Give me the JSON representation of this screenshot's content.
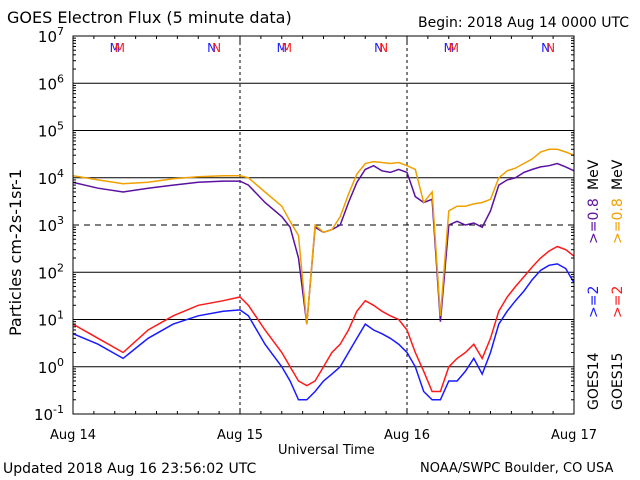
{
  "header": {
    "title": "GOES Electron Flux (5 minute data)",
    "begin": "Begin: 2018 Aug 14 0000 UTC"
  },
  "footer": {
    "updated": "Updated 2018 Aug 16 23:56:02 UTC",
    "credit": "NOAA/SWPC Boulder, CO USA"
  },
  "markers": {
    "midnight": "M",
    "noon": "N",
    "colors": {
      "goes14": "#1a1aff",
      "goes15": "#ff1a1a"
    }
  },
  "legend": {
    "goes14": "GOES14",
    "goes15": "GOES15",
    "gt2_goes14": ">=2",
    "gt2_goes15": ">=2",
    "gt08_goes14": ">=0.8",
    "gt08_goes15": ">=0.8",
    "unit": "MeV"
  },
  "chart_data": {
    "type": "line",
    "title": "GOES Electron Flux (5 minute data)",
    "xlabel": "Universal Time",
    "ylabel": "Particles cm-2s-1sr-1",
    "x_ticks": [
      "Aug 14",
      "Aug 15",
      "Aug 16",
      "Aug 17"
    ],
    "xlim_days": [
      0,
      3
    ],
    "y_scale": "log",
    "ylim": [
      0.1,
      10000000
    ],
    "y_ticks": [
      {
        "base": "10",
        "exp": "-1"
      },
      {
        "base": "10",
        "exp": "0"
      },
      {
        "base": "10",
        "exp": "1"
      },
      {
        "base": "10",
        "exp": "2"
      },
      {
        "base": "10",
        "exp": "3"
      },
      {
        "base": "10",
        "exp": "4"
      },
      {
        "base": "10",
        "exp": "5"
      },
      {
        "base": "10",
        "exp": "6"
      },
      {
        "base": "10",
        "exp": "7"
      }
    ],
    "grid": true,
    "threshold": 1000,
    "series": [
      {
        "name": "GOES14 >=0.8 MeV",
        "color": "#5a10a0",
        "x": [
          0.0,
          0.15,
          0.3,
          0.45,
          0.6,
          0.75,
          0.9,
          1.0,
          1.05,
          1.15,
          1.25,
          1.3,
          1.35,
          1.4,
          1.45,
          1.5,
          1.55,
          1.6,
          1.65,
          1.7,
          1.75,
          1.8,
          1.85,
          1.9,
          1.95,
          2.0,
          2.05,
          2.1,
          2.15,
          2.2,
          2.25,
          2.3,
          2.35,
          2.4,
          2.45,
          2.5,
          2.55,
          2.6,
          2.65,
          2.7,
          2.75,
          2.8,
          2.85,
          2.9,
          2.95,
          3.0
        ],
        "y": [
          8000,
          6000,
          5000,
          6000,
          7000,
          8000,
          8500,
          8500,
          7000,
          3000,
          1500,
          900,
          200,
          8,
          900,
          700,
          800,
          1000,
          3000,
          8000,
          15000,
          18000,
          14000,
          13000,
          15000,
          13000,
          4000,
          3000,
          3500,
          9,
          1000,
          1200,
          1000,
          1100,
          900,
          2000,
          7000,
          9000,
          10000,
          13000,
          15000,
          17000,
          18000,
          20000,
          17000,
          14000
        ]
      },
      {
        "name": "GOES15 >=0.8 MeV",
        "color": "#f0a000",
        "x": [
          0.0,
          0.15,
          0.3,
          0.45,
          0.6,
          0.75,
          0.9,
          1.0,
          1.05,
          1.15,
          1.25,
          1.3,
          1.35,
          1.4,
          1.45,
          1.5,
          1.55,
          1.6,
          1.65,
          1.7,
          1.75,
          1.8,
          1.85,
          1.9,
          1.95,
          2.0,
          2.05,
          2.1,
          2.15,
          2.2,
          2.25,
          2.3,
          2.35,
          2.4,
          2.45,
          2.5,
          2.55,
          2.6,
          2.65,
          2.7,
          2.75,
          2.8,
          2.85,
          2.9,
          2.95,
          3.0
        ],
        "y": [
          11000,
          9000,
          7500,
          8000,
          9500,
          10500,
          11000,
          11000,
          10000,
          5000,
          2500,
          1200,
          600,
          8,
          1000,
          700,
          800,
          1500,
          4500,
          12000,
          20000,
          22000,
          21000,
          20000,
          21000,
          18000,
          15000,
          3000,
          5000,
          12,
          2000,
          2500,
          2500,
          2800,
          3000,
          3500,
          10000,
          14000,
          16000,
          20000,
          25000,
          35000,
          40000,
          40000,
          35000,
          30000
        ]
      },
      {
        "name": "GOES14 >=2 MeV",
        "color": "#1a1aff",
        "x": [
          0.0,
          0.15,
          0.3,
          0.45,
          0.6,
          0.75,
          0.9,
          1.0,
          1.05,
          1.15,
          1.25,
          1.3,
          1.35,
          1.4,
          1.45,
          1.5,
          1.55,
          1.6,
          1.65,
          1.7,
          1.75,
          1.8,
          1.85,
          1.9,
          1.95,
          2.0,
          2.05,
          2.1,
          2.15,
          2.2,
          2.25,
          2.3,
          2.35,
          2.4,
          2.45,
          2.5,
          2.55,
          2.6,
          2.65,
          2.7,
          2.75,
          2.8,
          2.85,
          2.9,
          2.95,
          3.0
        ],
        "y": [
          5,
          3,
          1.5,
          4,
          8,
          12,
          15,
          16,
          12,
          3,
          1,
          0.5,
          0.2,
          0.2,
          0.3,
          0.5,
          0.7,
          1,
          2,
          4,
          8,
          6,
          5,
          4,
          3,
          2,
          1,
          0.3,
          0.2,
          0.2,
          0.5,
          0.5,
          0.8,
          1.5,
          0.7,
          2,
          8,
          15,
          25,
          40,
          70,
          110,
          140,
          150,
          120,
          60
        ]
      },
      {
        "name": "GOES15 >=2 MeV",
        "color": "#ff1a1a",
        "x": [
          0.0,
          0.15,
          0.3,
          0.45,
          0.6,
          0.75,
          0.9,
          1.0,
          1.05,
          1.15,
          1.25,
          1.3,
          1.35,
          1.4,
          1.45,
          1.5,
          1.55,
          1.6,
          1.65,
          1.7,
          1.75,
          1.8,
          1.85,
          1.9,
          1.95,
          2.0,
          2.05,
          2.1,
          2.15,
          2.2,
          2.25,
          2.3,
          2.35,
          2.4,
          2.45,
          2.5,
          2.55,
          2.6,
          2.65,
          2.7,
          2.75,
          2.8,
          2.85,
          2.9,
          2.95,
          3.0
        ],
        "y": [
          8,
          4,
          2,
          6,
          12,
          20,
          25,
          30,
          20,
          6,
          2,
          1,
          0.5,
          0.4,
          0.5,
          1,
          2,
          3,
          6,
          15,
          25,
          20,
          15,
          12,
          10,
          6,
          2,
          0.8,
          0.3,
          0.3,
          1,
          1.5,
          2,
          3,
          1.5,
          4,
          15,
          30,
          50,
          80,
          130,
          200,
          280,
          350,
          300,
          220
        ]
      }
    ]
  }
}
